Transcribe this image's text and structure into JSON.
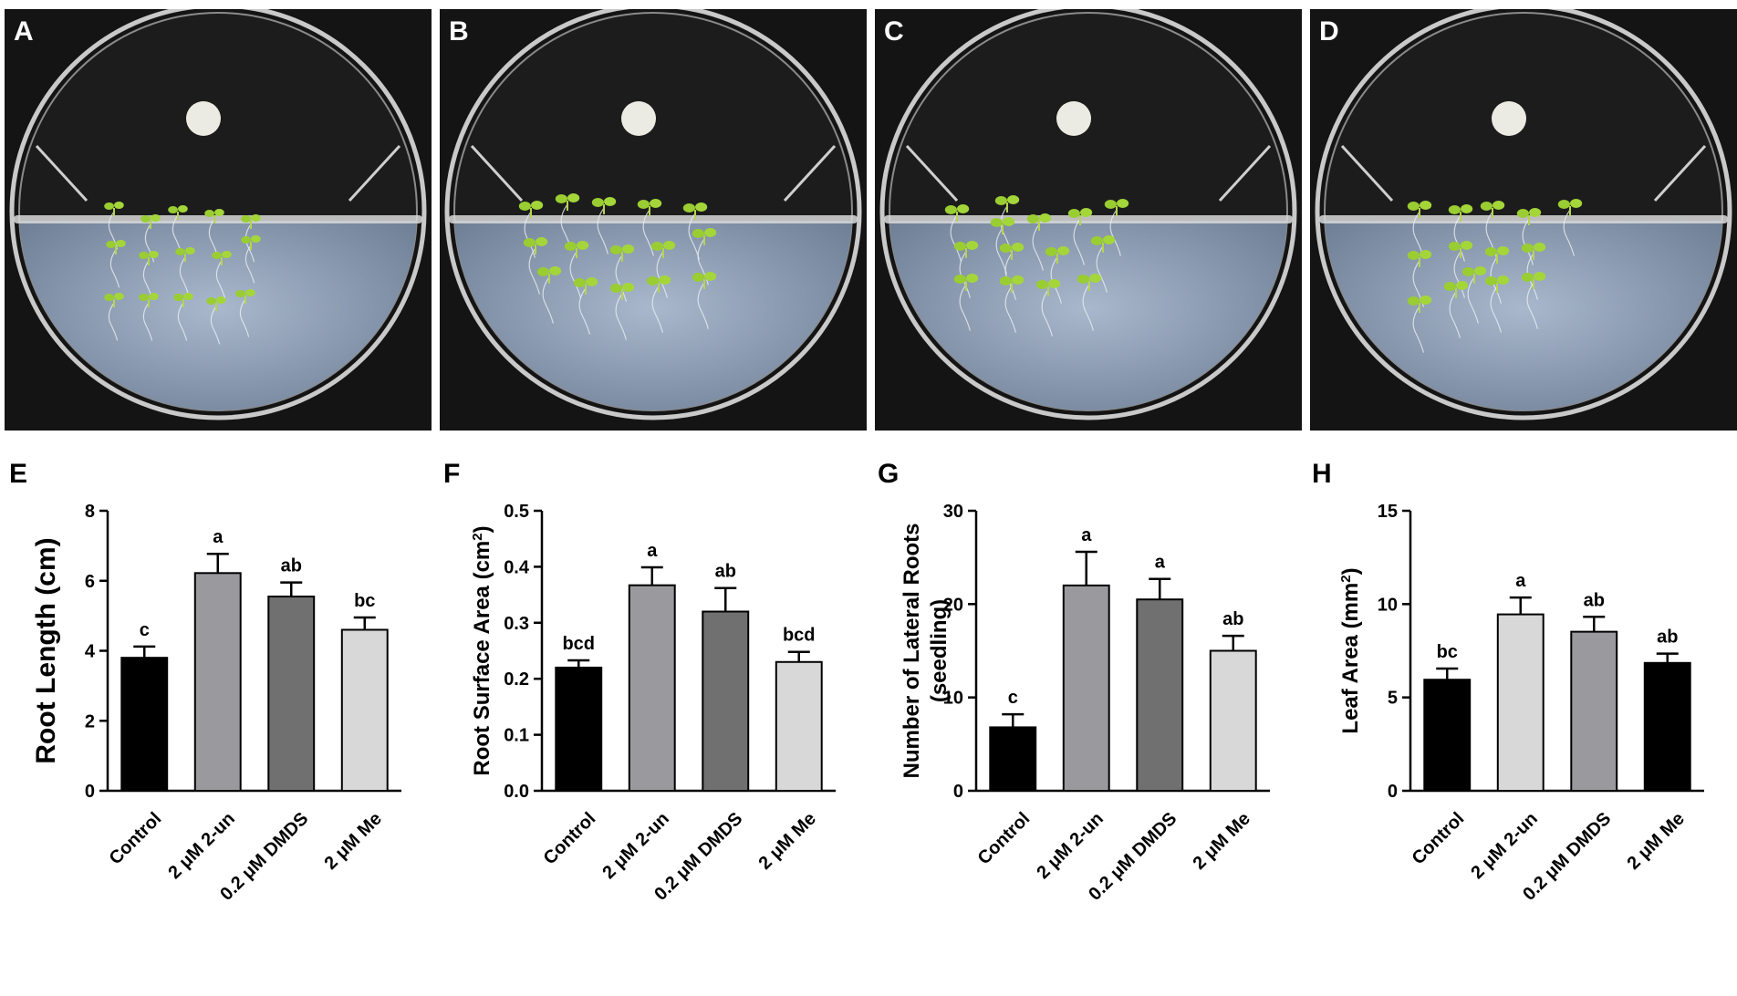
{
  "photos": [
    {
      "label": "A"
    },
    {
      "label": "B"
    },
    {
      "label": "C"
    },
    {
      "label": "D"
    }
  ],
  "chart_data": [
    {
      "type": "bar",
      "panel_label": "E",
      "categories": [
        "Control",
        "2 μM 2-un",
        "0.2 μM DMDS",
        "2 μM Me"
      ],
      "values": [
        3.8,
        6.22,
        5.55,
        4.6
      ],
      "errors": [
        0.32,
        0.55,
        0.4,
        0.35
      ],
      "significance": [
        "c",
        "a",
        "ab",
        "bc"
      ],
      "colors": [
        "#000000",
        "#9a9a9e",
        "#707070",
        "#d8d8d8"
      ],
      "ylabel": "Root Length (cm)",
      "ylabel_sup": "",
      "ylabel_suffix": "",
      "ylabel_line2": "",
      "ylim": [
        0,
        8
      ],
      "yticks": [
        "0",
        "2",
        "4",
        "6",
        "8"
      ]
    },
    {
      "type": "bar",
      "panel_label": "F",
      "categories": [
        "Control",
        "2 μM 2-un",
        "0.2 μM DMDS",
        "2 μM Me"
      ],
      "values": [
        0.22,
        0.367,
        0.32,
        0.23
      ],
      "errors": [
        0.013,
        0.032,
        0.042,
        0.018
      ],
      "significance": [
        "bcd",
        "a",
        "ab",
        "bcd"
      ],
      "colors": [
        "#000000",
        "#9a9a9e",
        "#707070",
        "#d8d8d8"
      ],
      "ylabel": "Root Surface Area (cm",
      "ylabel_sup": "2",
      "ylabel_suffix": ")",
      "ylabel_line2": "",
      "ylim": [
        0,
        0.5
      ],
      "yticks": [
        "0.0",
        "0.1",
        "0.2",
        "0.3",
        "0.4",
        "0.5"
      ]
    },
    {
      "type": "bar",
      "panel_label": "G",
      "categories": [
        "Control",
        "2 μM 2-un",
        "0.2 μM DMDS",
        "2 μM Me"
      ],
      "values": [
        6.8,
        22.0,
        20.5,
        15.0
      ],
      "errors": [
        1.4,
        3.6,
        2.2,
        1.6
      ],
      "significance": [
        "c",
        "a",
        "a",
        "ab"
      ],
      "colors": [
        "#000000",
        "#9a9a9e",
        "#707070",
        "#d8d8d8"
      ],
      "ylabel": "Number of Lateral Roots",
      "ylabel_sup": "",
      "ylabel_suffix": "",
      "ylabel_line2": "(seedling)",
      "ylim": [
        0,
        30
      ],
      "yticks": [
        "0",
        "10",
        "20",
        "30"
      ]
    },
    {
      "type": "bar",
      "panel_label": "H",
      "categories": [
        "Control",
        "2 μM 2-un",
        "0.2 μM DMDS",
        "2 μM Me"
      ],
      "values": [
        5.95,
        9.45,
        8.52,
        6.85
      ],
      "errors": [
        0.6,
        0.9,
        0.8,
        0.5
      ],
      "significance": [
        "bc",
        "a",
        "ab",
        "ab"
      ],
      "colors": [
        "#000000",
        "#d8d8d8",
        "#9a9a9e",
        "#000000"
      ],
      "ylabel": "Leaf Area (mm",
      "ylabel_sup": "2",
      "ylabel_suffix": ")",
      "ylabel_line2": "",
      "ylim": [
        0,
        15
      ],
      "yticks": [
        "0",
        "5",
        "10",
        "15"
      ]
    }
  ]
}
